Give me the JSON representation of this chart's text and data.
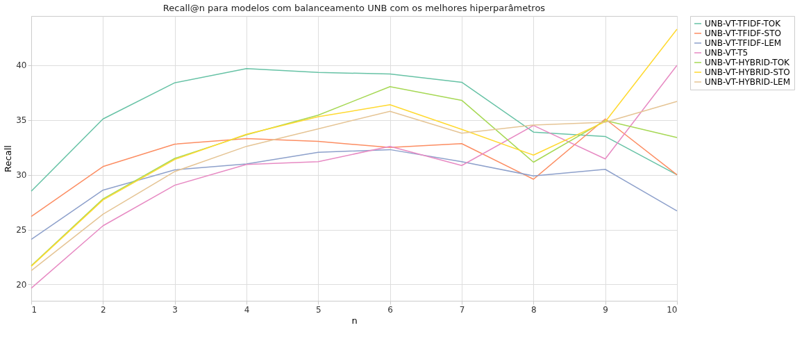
{
  "chart_data": {
    "type": "line",
    "title": "Recall@n para modelos com balanceamento UNB com os melhores hiperparâmetros",
    "xlabel": "n",
    "ylabel": "Recall",
    "x": [
      1,
      2,
      3,
      4,
      5,
      6,
      7,
      8,
      9,
      10
    ],
    "xlim": [
      1,
      10
    ],
    "xticks": [
      1,
      2,
      3,
      4,
      5,
      6,
      7,
      8,
      9,
      10
    ],
    "ylim": [
      18.5,
      44.5
    ],
    "yticks": [
      20,
      25,
      30,
      35,
      40
    ],
    "grid": true,
    "legend": "top right",
    "marker": "none",
    "line_style": "solid",
    "series": [
      {
        "name": "UNB-VT-TFIDF-TOK",
        "color": "#66c2a5",
        "values": [
          28.5,
          35.1,
          38.4,
          39.7,
          39.35,
          39.2,
          38.45,
          33.9,
          33.5,
          30.0
        ]
      },
      {
        "name": "UNB-VT-TFIDF-STO",
        "color": "#fc8d62",
        "values": [
          26.2,
          30.75,
          32.8,
          33.3,
          33.05,
          32.5,
          32.85,
          29.6,
          35.1,
          30.0
        ]
      },
      {
        "name": "UNB-VT-TFIDF-LEM",
        "color": "#8da0cb",
        "values": [
          24.1,
          28.6,
          30.45,
          31.0,
          32.05,
          32.3,
          31.2,
          29.9,
          30.5,
          26.7
        ]
      },
      {
        "name": "UNB-VT-T5",
        "color": "#e78ac3",
        "values": [
          19.65,
          25.35,
          29.05,
          30.95,
          31.2,
          32.6,
          30.85,
          34.5,
          31.45,
          40.0
        ]
      },
      {
        "name": "UNB-VT-HYBRID-TOK",
        "color": "#a6d854",
        "values": [
          21.7,
          27.8,
          31.5,
          33.65,
          35.45,
          38.05,
          36.8,
          31.15,
          34.95,
          33.4
        ]
      },
      {
        "name": "UNB-VT-HYBRID-STO",
        "color": "#ffd92f",
        "values": [
          21.65,
          27.7,
          31.4,
          33.7,
          35.3,
          36.4,
          34.15,
          31.8,
          34.85,
          43.3
        ]
      },
      {
        "name": "UNB-VT-HYBRID-LEM",
        "color": "#e5c494",
        "values": [
          21.25,
          26.4,
          30.3,
          32.6,
          34.2,
          35.8,
          33.8,
          34.55,
          34.8,
          36.7
        ]
      }
    ]
  }
}
